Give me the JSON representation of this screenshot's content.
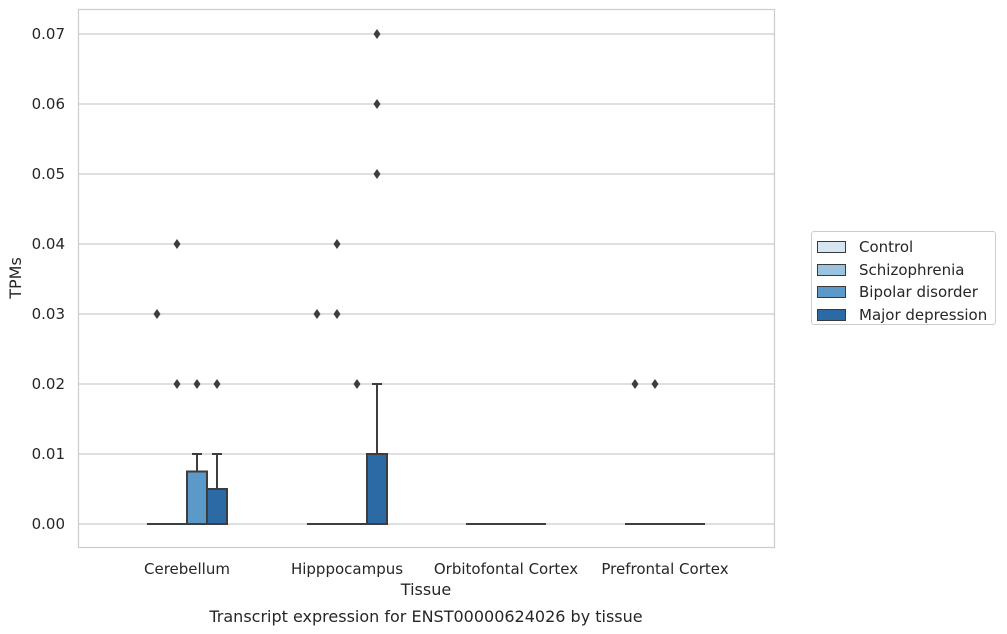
{
  "chart_data": {
    "type": "box",
    "title": "Transcript expression for ENST00000624026 by tissue",
    "xlabel": "Tissue",
    "ylabel": "TPMs",
    "ylim": [
      -0.0034,
      0.0735
    ],
    "yticks": [
      "0.00",
      "0.01",
      "0.02",
      "0.03",
      "0.04",
      "0.05",
      "0.06",
      "0.07"
    ],
    "categories": [
      "Cerebellum",
      "Hipppocampus",
      "Orbitofontal Cortex",
      "Prefrontal Cortex"
    ],
    "grid": "horizontal",
    "legend_position": "right",
    "series": [
      {
        "name": "Control",
        "color": "#d6e5f3",
        "boxes": [
          {
            "q1": 0,
            "median": 0,
            "q3": 0,
            "whisker_low": 0,
            "whisker_high": 0,
            "outliers": [
              0.03
            ]
          },
          {
            "q1": 0,
            "median": 0,
            "q3": 0,
            "whisker_low": 0,
            "whisker_high": 0,
            "outliers": [
              0.03
            ]
          },
          {
            "q1": 0,
            "median": 0,
            "q3": 0,
            "whisker_low": 0,
            "whisker_high": 0,
            "outliers": []
          },
          {
            "q1": 0,
            "median": 0,
            "q3": 0,
            "whisker_low": 0,
            "whisker_high": 0,
            "outliers": [
              0.02
            ]
          }
        ]
      },
      {
        "name": "Schizophrenia",
        "color": "#9ac3de",
        "boxes": [
          {
            "q1": 0,
            "median": 0,
            "q3": 0,
            "whisker_low": 0,
            "whisker_high": 0,
            "outliers": [
              0.02,
              0.04
            ]
          },
          {
            "q1": 0,
            "median": 0,
            "q3": 0,
            "whisker_low": 0,
            "whisker_high": 0,
            "outliers": [
              0.03,
              0.04
            ]
          },
          {
            "q1": 0,
            "median": 0,
            "q3": 0,
            "whisker_low": 0,
            "whisker_high": 0,
            "outliers": []
          },
          {
            "q1": 0,
            "median": 0,
            "q3": 0,
            "whisker_low": 0,
            "whisker_high": 0,
            "outliers": [
              0.02
            ]
          }
        ]
      },
      {
        "name": "Bipolar disorder",
        "color": "#5b9ac8",
        "boxes": [
          {
            "q1": 0,
            "median": 0,
            "q3": 0.0075,
            "whisker_low": 0,
            "whisker_high": 0.01,
            "outliers": [
              0.02
            ]
          },
          {
            "q1": 0,
            "median": 0,
            "q3": 0,
            "whisker_low": 0,
            "whisker_high": 0,
            "outliers": [
              0.02
            ]
          },
          {
            "q1": 0,
            "median": 0,
            "q3": 0,
            "whisker_low": 0,
            "whisker_high": 0,
            "outliers": []
          },
          {
            "q1": 0,
            "median": 0,
            "q3": 0,
            "whisker_low": 0,
            "whisker_high": 0,
            "outliers": []
          }
        ]
      },
      {
        "name": "Major depression",
        "color": "#2c6aa6",
        "boxes": [
          {
            "q1": 0,
            "median": 0,
            "q3": 0.005,
            "whisker_low": 0,
            "whisker_high": 0.01,
            "outliers": [
              0.02
            ]
          },
          {
            "q1": 0,
            "median": 0,
            "q3": 0.01,
            "whisker_low": 0,
            "whisker_high": 0.02,
            "outliers": [
              0.05,
              0.06,
              0.07
            ]
          },
          {
            "q1": 0,
            "median": 0,
            "q3": 0,
            "whisker_low": 0,
            "whisker_high": 0,
            "outliers": []
          },
          {
            "q1": 0,
            "median": 0,
            "q3": 0,
            "whisker_low": 0,
            "whisker_high": 0,
            "outliers": []
          }
        ]
      }
    ]
  }
}
